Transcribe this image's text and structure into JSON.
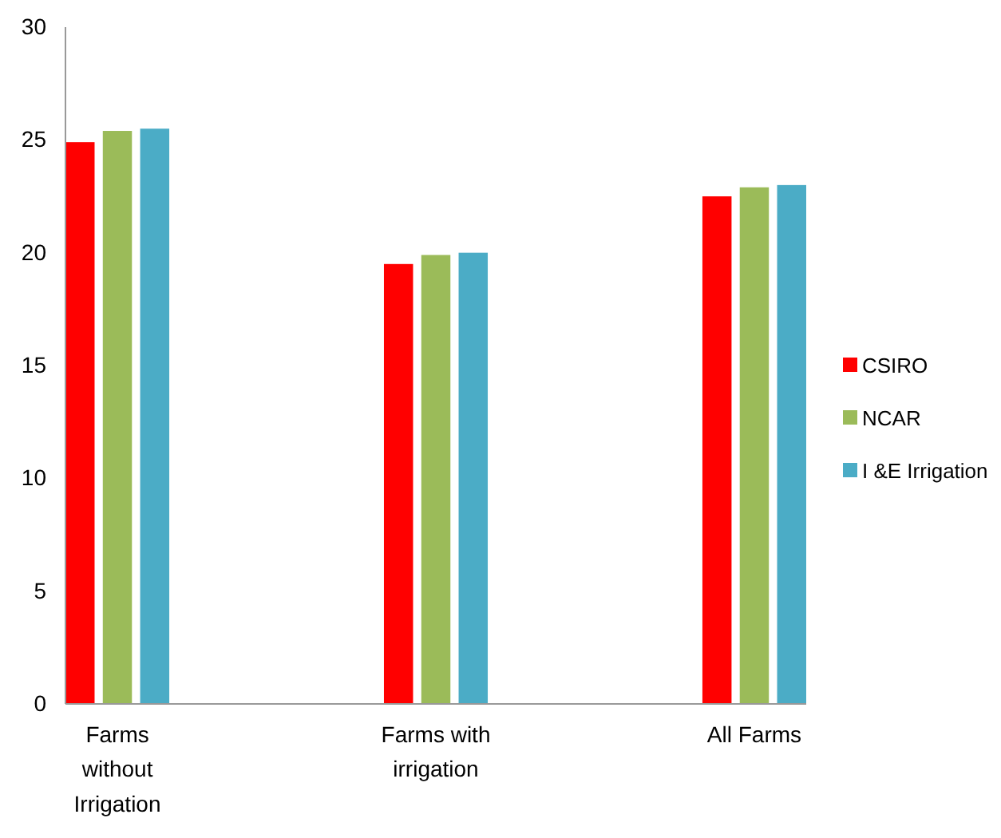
{
  "chart_data": {
    "type": "bar",
    "categories": [
      "Farms without Irrigation",
      "Farms with irrigation",
      "All Farms"
    ],
    "series": [
      {
        "name": "CSIRO",
        "color": "#ff0000",
        "values": [
          24.9,
          19.5,
          22.5
        ]
      },
      {
        "name": "NCAR",
        "color": "#9bbb59",
        "values": [
          25.4,
          19.9,
          22.9
        ]
      },
      {
        "name": "I &E Irrigation",
        "color": "#4bacc6",
        "values": [
          25.5,
          20.0,
          23.0
        ]
      }
    ],
    "ylim": [
      0,
      30
    ],
    "yticks": [
      0,
      5,
      10,
      15,
      20,
      25,
      30
    ],
    "grid": false,
    "legend": "right"
  }
}
